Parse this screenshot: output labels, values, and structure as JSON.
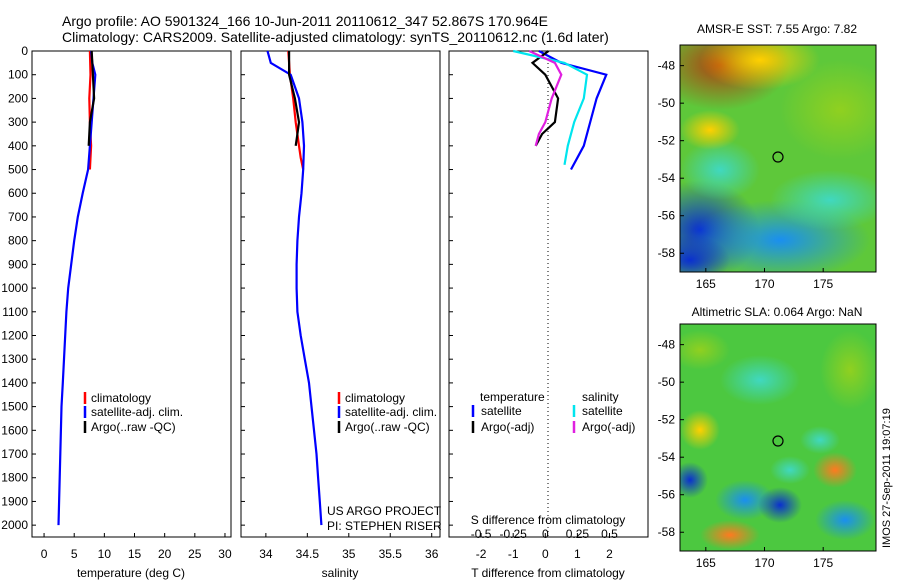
{
  "title_line1": "Argo profile: AO 5901324_166 10-Jun-2011 20110612_347 52.867S 170.964E",
  "title_line2": "Climatology: CARS2009. Satellite-adjusted climatology: synTS_20110612.nc (1.6d later)",
  "stamp": "IMOS 27-Sep-2011 19:07:19",
  "colors": {
    "red": "#ff0000",
    "blue": "#0000ff",
    "black": "#000000",
    "cyan": "#00e5ee",
    "magenta": "#e020e0"
  },
  "chart_data": [
    {
      "type": "line",
      "xlabel": "temperature (deg C)",
      "ylabel": "",
      "xlim": [
        -2,
        31
      ],
      "ylim": [
        2050,
        0
      ],
      "xticks": [
        "0",
        "5",
        "10",
        "15",
        "20",
        "25",
        "30"
      ],
      "yticks": [
        "0",
        "100",
        "200",
        "300",
        "400",
        "500",
        "600",
        "700",
        "800",
        "900",
        "1000",
        "1100",
        "1200",
        "1300",
        "1400",
        "1500",
        "1600",
        "1700",
        "1800",
        "1900",
        "2000"
      ],
      "legend": [
        "climatology",
        "satellite-adj. clim.",
        "Argo(..raw -QC)"
      ],
      "legend_position": "lower-right",
      "series": [
        {
          "name": "climatology",
          "color": "#ff0000",
          "x": [
            7.6,
            7.7,
            7.5,
            7.6,
            7.8,
            7.7,
            7.6
          ],
          "y": [
            0,
            100,
            200,
            300,
            400,
            450,
            500
          ]
        },
        {
          "name": "satellite-adj. clim.",
          "color": "#0000ff",
          "x": [
            7.8,
            8.0,
            8.5,
            8.2,
            7.9,
            7.6,
            7.3,
            6.4,
            5.6,
            5.0,
            4.5,
            4.0,
            3.7,
            3.5,
            3.3,
            3.1,
            2.9,
            2.8,
            2.7,
            2.6,
            2.5,
            2.4
          ],
          "y": [
            0,
            50,
            100,
            200,
            300,
            400,
            500,
            600,
            700,
            800,
            900,
            1000,
            1100,
            1200,
            1300,
            1400,
            1500,
            1600,
            1700,
            1800,
            1900,
            2000
          ]
        },
        {
          "name": "Argo(..raw -QC)",
          "color": "#000000",
          "x": [
            7.9,
            8.1,
            8.3,
            7.6,
            7.5,
            7.4
          ],
          "y": [
            0,
            100,
            200,
            300,
            350,
            400
          ]
        }
      ]
    },
    {
      "type": "line",
      "xlabel": "salinity",
      "ylabel": "",
      "xlim": [
        33.7,
        36.1
      ],
      "ylim": [
        2050,
        0
      ],
      "xticks": [
        "34",
        "34.5",
        "35",
        "35.5",
        "36"
      ],
      "legend": [
        "climatology",
        "satellite-adj. clim.",
        "Argo(..raw -QC)"
      ],
      "legend_position": "lower-right",
      "annotation": [
        "US ARGO PROJECT",
        "PI: STEPHEN RISER"
      ],
      "series": [
        {
          "name": "climatology",
          "color": "#ff0000",
          "x": [
            34.27,
            34.29,
            34.33,
            34.36,
            34.4,
            34.42,
            34.45
          ],
          "y": [
            0,
            100,
            200,
            300,
            400,
            450,
            500
          ]
        },
        {
          "name": "satellite-adj. clim.",
          "color": "#0000ff",
          "x": [
            34.02,
            34.06,
            34.3,
            34.4,
            34.44,
            34.46,
            34.45,
            34.43,
            34.4,
            34.38,
            34.37,
            34.37,
            34.38,
            34.42,
            34.47,
            34.52,
            34.55,
            34.58,
            34.61,
            34.63,
            34.65,
            34.67
          ],
          "y": [
            0,
            50,
            100,
            200,
            300,
            400,
            500,
            600,
            700,
            800,
            900,
            1000,
            1100,
            1200,
            1300,
            1400,
            1500,
            1600,
            1700,
            1800,
            1900,
            2000
          ]
        },
        {
          "name": "Argo(..raw -QC)",
          "color": "#000000",
          "x": [
            34.28,
            34.28,
            34.35,
            34.4,
            34.38,
            34.36
          ],
          "y": [
            0,
            100,
            200,
            300,
            350,
            400
          ]
        }
      ]
    },
    {
      "type": "line",
      "xlabel": "T difference from climatology",
      "xlabel2": "S difference from climatology",
      "xlim": [
        -3,
        3.2
      ],
      "ylim": [
        2050,
        0
      ],
      "xticks": [
        "-2",
        "-1",
        "0",
        "1",
        "2"
      ],
      "xticks2": [
        "-0.5",
        "-0.25",
        "0",
        "0.25",
        "0.5"
      ],
      "legend": {
        "temperature_header": "temperature",
        "salinity_header": "salinity",
        "temperature": [
          "satellite",
          "Argo(-adj)"
        ],
        "salinity": [
          "satellite",
          "Argo(-adj)"
        ]
      },
      "legend_position": "lower",
      "series": [
        {
          "name": "satellite",
          "color": "#0000ff",
          "x": [
            -0.2,
            0.5,
            1.9,
            1.6,
            1.4,
            1.2,
            1.0,
            0.8
          ],
          "y": [
            0,
            50,
            100,
            200,
            300,
            400,
            450,
            500
          ]
        },
        {
          "name": "Argo(-adj)",
          "color": "#000000",
          "x": [
            0.1,
            -0.4,
            0.0,
            0.4,
            0.3,
            -0.1,
            -0.3
          ],
          "y": [
            0,
            50,
            100,
            200,
            300,
            350,
            400
          ]
        },
        {
          "name": "satellite",
          "color": "#00e5ee",
          "x": [
            -1.0,
            0.6,
            1.3,
            1.2,
            0.9,
            0.7,
            0.6
          ],
          "y": [
            0,
            50,
            100,
            200,
            300,
            400,
            480
          ]
        },
        {
          "name": "Argo(-adj)",
          "color": "#e020e0",
          "x": [
            -0.5,
            0.3,
            0.5,
            0.2,
            0.0,
            -0.2,
            -0.3
          ],
          "y": [
            0,
            50,
            100,
            200,
            300,
            350,
            400
          ]
        }
      ]
    },
    {
      "type": "heatmap",
      "title": "AMSR-E SST: 7.55 Argo: 7.82",
      "xlim": [
        162.8,
        179.5
      ],
      "ylim": [
        -59,
        -46.9
      ],
      "xticks": [
        "165",
        "170",
        "175"
      ],
      "yticks": [
        "-48",
        "-50",
        "-52",
        "-54",
        "-56",
        "-58"
      ],
      "marker": {
        "lon": 171,
        "lat": -52.87
      }
    },
    {
      "type": "heatmap",
      "title": "Altimetric SLA: 0.064 Argo: NaN",
      "xlim": [
        162.8,
        179.5
      ],
      "ylim": [
        -59,
        -46.9
      ],
      "xticks": [
        "165",
        "170",
        "175"
      ],
      "yticks": [
        "-48",
        "-50",
        "-52",
        "-54",
        "-56",
        "-58"
      ],
      "marker": {
        "lon": 171,
        "lat": -52.87
      }
    }
  ]
}
